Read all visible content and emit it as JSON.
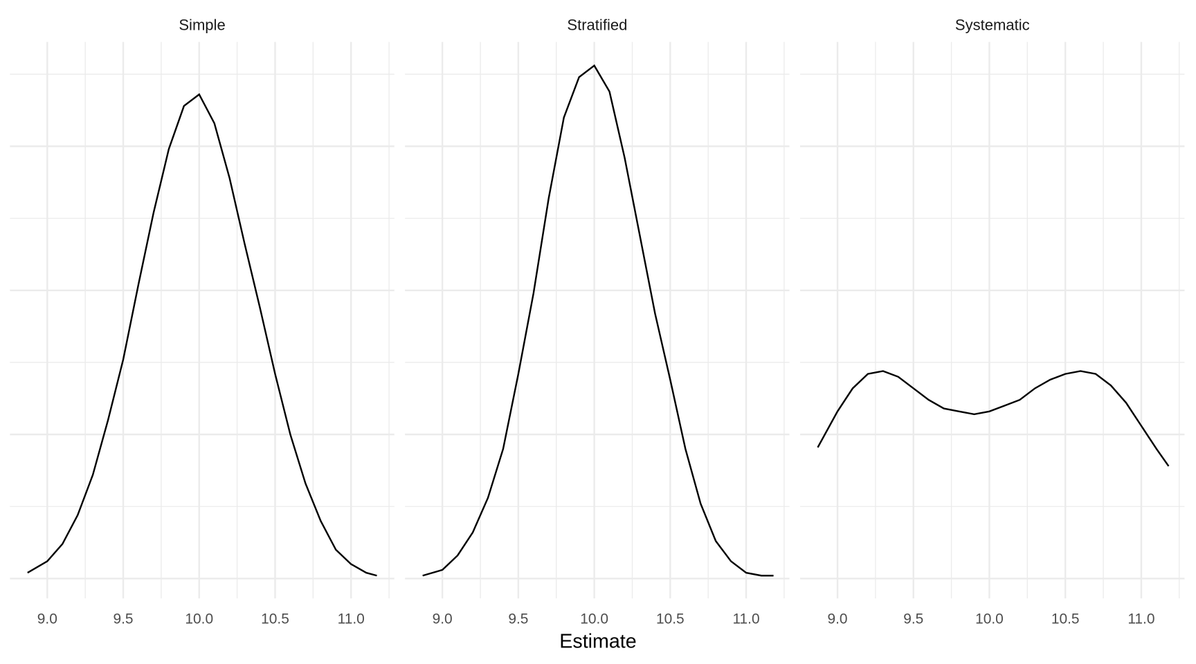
{
  "chart_data": [
    {
      "type": "line",
      "title": "Simple",
      "color": "#000000",
      "x": [
        8.87,
        9.0,
        9.1,
        9.2,
        9.3,
        9.4,
        9.5,
        9.6,
        9.7,
        9.8,
        9.9,
        10.0,
        10.1,
        10.2,
        10.3,
        10.4,
        10.5,
        10.6,
        10.7,
        10.8,
        10.9,
        11.0,
        11.1,
        11.17
      ],
      "values": [
        0.02,
        0.06,
        0.12,
        0.22,
        0.36,
        0.55,
        0.76,
        1.02,
        1.27,
        1.49,
        1.64,
        1.68,
        1.58,
        1.39,
        1.16,
        0.94,
        0.71,
        0.5,
        0.33,
        0.2,
        0.1,
        0.05,
        0.02,
        0.01
      ],
      "xlim": [
        8.754,
        11.285
      ],
      "ylim": [
        -0.069,
        1.862
      ],
      "xticks": [
        {
          "value": 9,
          "label": "9.0"
        },
        {
          "value": 9.5,
          "label": "9.5"
        },
        {
          "value": 10,
          "label": "10.0"
        },
        {
          "value": 10.5,
          "label": "10.5"
        },
        {
          "value": 11,
          "label": "11.0"
        }
      ],
      "xminorticks": [
        9.25,
        9.75,
        10.25,
        10.75,
        11.25
      ],
      "yticks": [
        0,
        0.5,
        1,
        1.5
      ],
      "yminorticks": [
        0.25,
        0.75,
        1.25,
        1.75
      ],
      "grid": true
    },
    {
      "type": "line",
      "title": "Stratified",
      "color": "#000000",
      "x": [
        8.87,
        9.0,
        9.1,
        9.2,
        9.3,
        9.4,
        9.5,
        9.6,
        9.7,
        9.8,
        9.9,
        10.0,
        10.1,
        10.2,
        10.3,
        10.4,
        10.5,
        10.6,
        10.7,
        10.8,
        10.9,
        11.0,
        11.1,
        11.18
      ],
      "values": [
        0.01,
        0.03,
        0.08,
        0.16,
        0.28,
        0.45,
        0.71,
        0.99,
        1.32,
        1.6,
        1.74,
        1.78,
        1.69,
        1.46,
        1.19,
        0.92,
        0.69,
        0.45,
        0.26,
        0.13,
        0.06,
        0.02,
        0.01,
        0.01
      ],
      "xlim": [
        8.754,
        11.285
      ],
      "ylim": [
        -0.069,
        1.862
      ],
      "xticks": [
        {
          "value": 9,
          "label": "9.0"
        },
        {
          "value": 9.5,
          "label": "9.5"
        },
        {
          "value": 10,
          "label": "10.0"
        },
        {
          "value": 10.5,
          "label": "10.5"
        },
        {
          "value": 11,
          "label": "11.0"
        }
      ],
      "xminorticks": [
        9.25,
        9.75,
        10.25,
        10.75,
        11.25
      ],
      "yticks": [
        0,
        0.5,
        1,
        1.5
      ],
      "yminorticks": [
        0.25,
        0.75,
        1.25,
        1.75
      ],
      "grid": true
    },
    {
      "type": "line",
      "title": "Systematic",
      "color": "#000000",
      "x": [
        8.87,
        9.0,
        9.1,
        9.2,
        9.3,
        9.4,
        9.5,
        9.6,
        9.7,
        9.8,
        9.9,
        10.0,
        10.1,
        10.2,
        10.3,
        10.4,
        10.5,
        10.6,
        10.7,
        10.8,
        10.9,
        11.0,
        11.1,
        11.18
      ],
      "values": [
        0.455,
        0.58,
        0.66,
        0.71,
        0.72,
        0.7,
        0.66,
        0.62,
        0.59,
        0.58,
        0.57,
        0.58,
        0.6,
        0.62,
        0.66,
        0.69,
        0.71,
        0.72,
        0.71,
        0.67,
        0.61,
        0.53,
        0.45,
        0.39
      ],
      "xlim": [
        8.754,
        11.285
      ],
      "ylim": [
        -0.069,
        1.862
      ],
      "xticks": [
        {
          "value": 9,
          "label": "9.0"
        },
        {
          "value": 9.5,
          "label": "9.5"
        },
        {
          "value": 10,
          "label": "10.0"
        },
        {
          "value": 10.5,
          "label": "10.5"
        },
        {
          "value": 11,
          "label": "11.0"
        }
      ],
      "xminorticks": [
        9.25,
        9.75,
        10.25,
        10.75,
        11.25
      ],
      "yticks": [
        0,
        0.5,
        1,
        1.5
      ],
      "yminorticks": [
        0.25,
        0.75,
        1.25,
        1.75
      ],
      "grid": true
    }
  ],
  "xlabel": "Estimate"
}
